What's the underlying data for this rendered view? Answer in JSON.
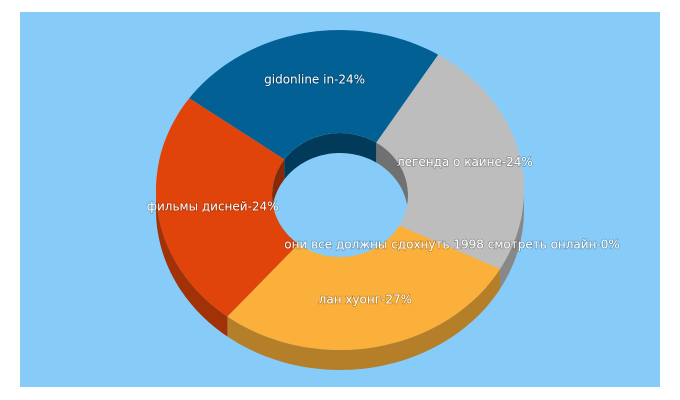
{
  "chart_data": {
    "type": "pie",
    "donut": true,
    "three_d": true,
    "values": [
      24,
      24,
      0,
      27,
      24
    ],
    "value_labels": [
      "gidonline in-24%",
      "легенда о каине-24%",
      "они все должны сдохнуть 1998 смотреть онлайн-0%",
      "лан хуонг-27%",
      "фильмы дисней-24%"
    ],
    "colors": [
      "#036094",
      "#bdbdbd",
      "#fdd0a0",
      "#fbb03b",
      "#e0440a"
    ]
  }
}
